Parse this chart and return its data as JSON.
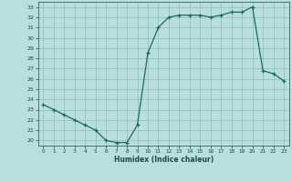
{
  "x": [
    0,
    1,
    2,
    3,
    4,
    5,
    6,
    7,
    8,
    9,
    10,
    11,
    12,
    13,
    14,
    15,
    16,
    17,
    18,
    19,
    20,
    21,
    22,
    23
  ],
  "y": [
    23.5,
    23.0,
    22.5,
    22.0,
    21.5,
    21.0,
    20.0,
    19.8,
    19.8,
    21.5,
    28.5,
    31.0,
    32.0,
    32.2,
    32.2,
    32.2,
    32.0,
    32.2,
    32.5,
    32.5,
    33.0,
    26.8,
    26.5,
    25.8
  ],
  "xlabel": "Humidex (Indice chaleur)",
  "ylim": [
    19.5,
    33.5
  ],
  "xlim": [
    -0.5,
    23.5
  ],
  "yticks": [
    20,
    21,
    22,
    23,
    24,
    25,
    26,
    27,
    28,
    29,
    30,
    31,
    32,
    33
  ],
  "xticks": [
    0,
    1,
    2,
    3,
    4,
    5,
    6,
    7,
    8,
    9,
    10,
    11,
    12,
    13,
    14,
    15,
    16,
    17,
    18,
    19,
    20,
    21,
    22,
    23
  ],
  "line_color": "#1a6b5a",
  "marker": "+",
  "bg_color": "#b8dede",
  "grid_color": "#90bcbc",
  "label_color": "#1a4a4a",
  "tick_color": "#1a4a4a"
}
